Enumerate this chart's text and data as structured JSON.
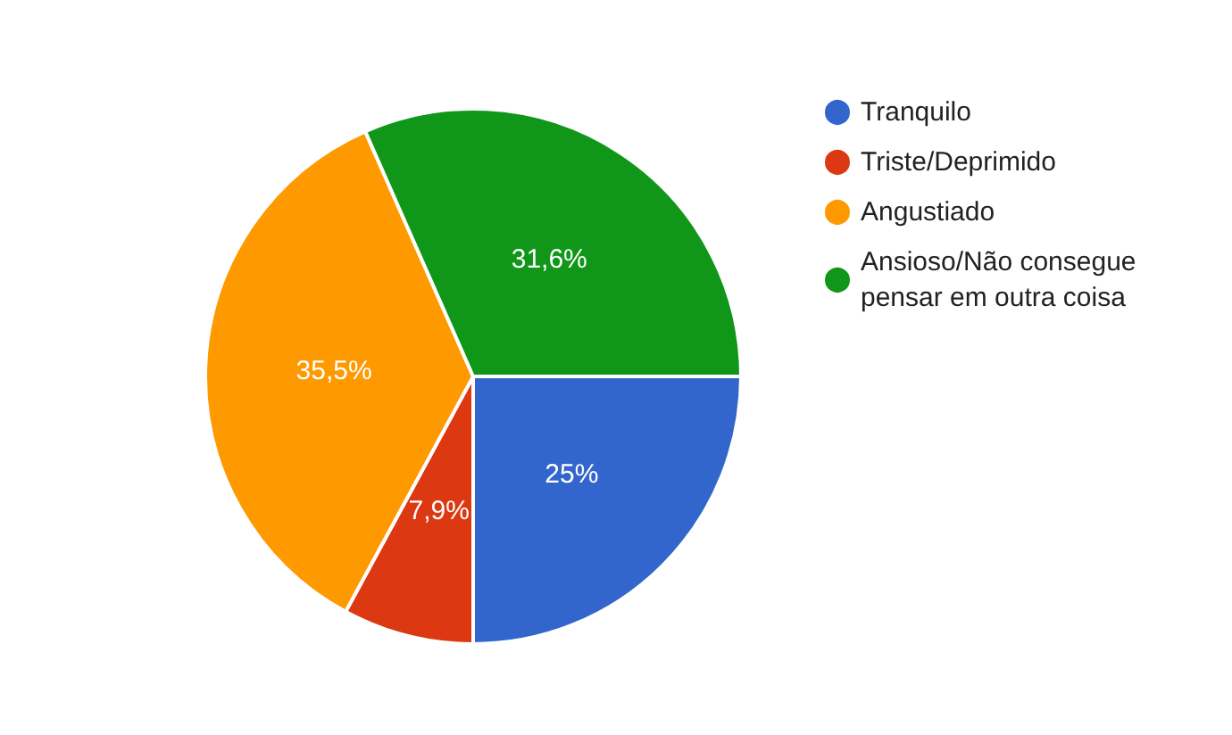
{
  "chart_data": {
    "type": "pie",
    "categories": [
      "Tranquilo",
      "Triste/Deprimido",
      "Angustiado",
      "Ansioso/Não consegue pensar em outra coisa"
    ],
    "values": [
      25,
      7.9,
      35.5,
      31.6
    ],
    "colors": [
      "#3366cc",
      "#dc3912",
      "#ff9900",
      "#109618"
    ],
    "value_labels": [
      "25%",
      "7,9%",
      "35,5%",
      "31,6%"
    ],
    "legend": "right"
  }
}
